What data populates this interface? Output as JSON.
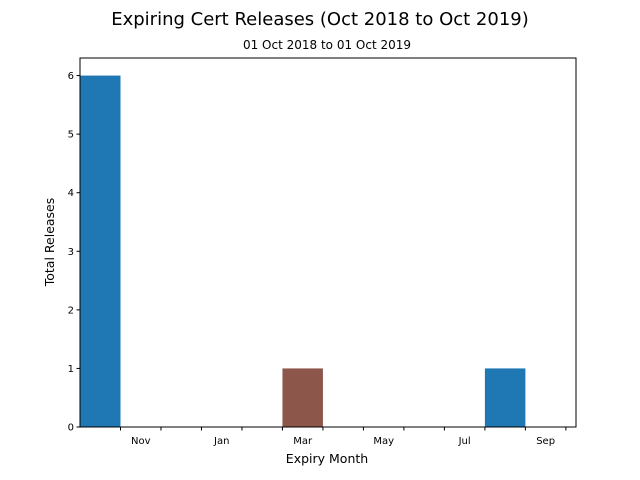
{
  "chart_data": {
    "type": "bar",
    "title": "Expiring Cert Releases (Oct 2018 to Oct 2019)",
    "subtitle": "01 Oct 2018 to 01 Oct 2019",
    "xlabel": "Expiry Month",
    "ylabel": "Total Releases",
    "ylim": [
      0,
      6.3
    ],
    "yticks": [
      0,
      1,
      2,
      3,
      4,
      5,
      6
    ],
    "xlim": [
      -0.5,
      11.75
    ],
    "xticks_labeled": [
      {
        "label": "Nov",
        "x": 1
      },
      {
        "label": "Jan",
        "x": 3
      },
      {
        "label": "Mar",
        "x": 5
      },
      {
        "label": "May",
        "x": 7
      },
      {
        "label": "Jul",
        "x": 9
      },
      {
        "label": "Sep",
        "x": 11
      }
    ],
    "xticks_minor": [
      0,
      2,
      4,
      6,
      8,
      10
    ],
    "bars": [
      {
        "month": "Oct",
        "x": 0,
        "value": 6,
        "color": "#1f77b4"
      },
      {
        "month": "Mar",
        "x": 5,
        "value": 1,
        "color": "#8c564b"
      },
      {
        "month": "Aug",
        "x": 10,
        "value": 1,
        "color": "#1f77b4"
      }
    ],
    "grid": false,
    "legend": "none"
  }
}
